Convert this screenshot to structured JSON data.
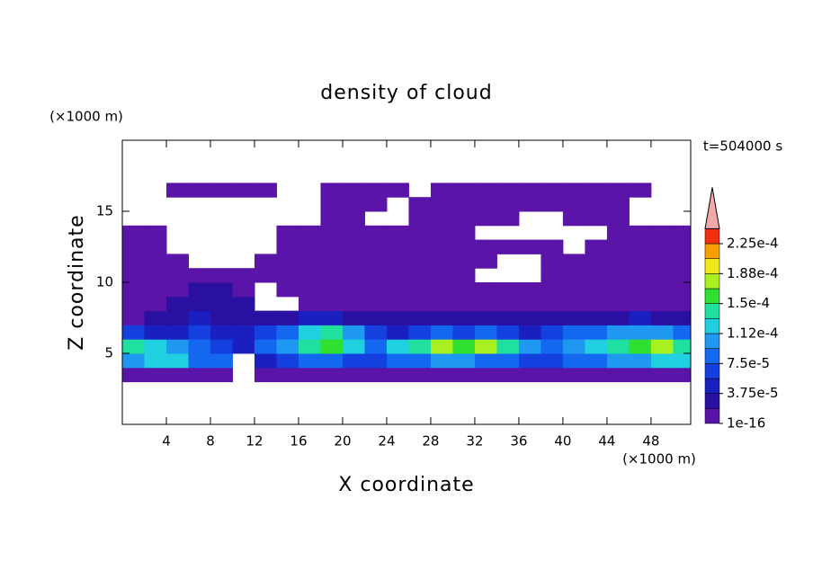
{
  "chart_data": {
    "type": "contour",
    "title": "density of cloud",
    "time_label": "t=504000 s",
    "x_label": "X coordinate",
    "y_label": "Z coordinate",
    "x_unit": "(×1000 m)",
    "y_unit": "(×1000 m)",
    "xlim": [
      0,
      51.6
    ],
    "ylim": [
      0,
      20
    ],
    "xticks": [
      4,
      8,
      12,
      16,
      20,
      24,
      28,
      32,
      36,
      40,
      44,
      48
    ],
    "yticks": [
      5,
      10,
      15
    ],
    "x": [
      1,
      3,
      5,
      7,
      9,
      11,
      13,
      15,
      17,
      19,
      21,
      23,
      25,
      27,
      29,
      31,
      33,
      35,
      37,
      39,
      41,
      43,
      45,
      47,
      49,
      51
    ],
    "z": [
      3.5,
      4.5,
      5.5,
      6.5,
      7.5,
      8.5,
      9.5,
      10.5,
      11.5,
      12.5,
      13.5,
      14.5,
      15.5,
      16.5
    ],
    "values": [
      [
        5e-06,
        5e-06,
        5e-06,
        5e-06,
        5e-06,
        null,
        5e-06,
        5e-06,
        5e-06,
        5e-06,
        5e-06,
        5e-06,
        5e-06,
        5e-06,
        5e-06,
        5e-06,
        5e-06,
        5e-06,
        5e-06,
        5e-06,
        5e-06,
        5e-06,
        5e-06,
        5e-06,
        5e-06,
        5e-06
      ],
      [
        0.00011,
        0.00013,
        0.00012,
        9e-05,
        8e-05,
        null,
        5e-05,
        7e-05,
        8e-05,
        9e-05,
        7e-05,
        6e-05,
        8e-05,
        9e-05,
        0.0001,
        0.0001,
        9e-05,
        8e-05,
        6e-05,
        7e-05,
        8e-05,
        9e-05,
        0.0001,
        0.00011,
        0.00012,
        0.00013
      ],
      [
        0.00015,
        0.00013,
        0.0001,
        8e-05,
        7e-05,
        5e-05,
        8e-05,
        0.00011,
        0.00014,
        0.00016,
        0.00013,
        9e-05,
        0.00012,
        0.00015,
        0.00017,
        0.00016,
        0.00017,
        0.00015,
        0.00011,
        9e-05,
        0.00011,
        0.00013,
        0.00014,
        0.00016,
        0.00017,
        0.00015
      ],
      [
        6e-05,
        4e-05,
        5e-05,
        6e-05,
        5e-05,
        4e-05,
        7e-05,
        9e-05,
        0.00013,
        0.00014,
        0.0001,
        6e-05,
        5e-05,
        7e-05,
        8e-05,
        7e-05,
        8e-05,
        6e-05,
        5e-05,
        6e-05,
        8e-05,
        9e-05,
        0.0001,
        0.00011,
        0.0001,
        8e-05
      ],
      [
        1.5e-05,
        2e-05,
        3e-05,
        4e-05,
        3.5e-05,
        3e-05,
        3e-05,
        3.5e-05,
        4e-05,
        4e-05,
        3e-05,
        2.5e-05,
        2e-05,
        2e-05,
        2.5e-05,
        2e-05,
        2e-05,
        2.5e-05,
        2e-05,
        2e-05,
        2.5e-05,
        3e-05,
        3.5e-05,
        4e-05,
        3.5e-05,
        3e-05
      ],
      [
        1e-05,
        1.5e-05,
        2e-05,
        3e-05,
        3.5e-05,
        3e-05,
        null,
        null,
        1.5e-05,
        1.5e-05,
        1e-05,
        1e-05,
        1e-05,
        1e-05,
        1e-05,
        1e-05,
        1e-05,
        1.5e-05,
        1.5e-05,
        1e-05,
        1e-05,
        1e-05,
        1.5e-05,
        1.5e-05,
        1e-05,
        1e-05
      ],
      [
        1e-05,
        1e-05,
        1e-05,
        2e-05,
        2.5e-05,
        1e-05,
        null,
        1e-05,
        1e-05,
        1e-05,
        1e-05,
        1e-05,
        1e-05,
        1e-05,
        1e-05,
        1e-05,
        1e-05,
        1e-05,
        1e-05,
        1e-05,
        1e-05,
        1e-05,
        1e-05,
        1e-05,
        1e-05,
        1e-05
      ],
      [
        1e-05,
        1e-05,
        1e-05,
        1e-05,
        1e-05,
        1e-05,
        1e-05,
        1e-05,
        1e-05,
        1e-05,
        1e-05,
        1e-05,
        1e-05,
        1e-05,
        1e-05,
        1e-05,
        null,
        null,
        null,
        1e-05,
        1e-05,
        1e-05,
        1e-05,
        1e-05,
        1e-05,
        1e-05
      ],
      [
        1e-05,
        1e-05,
        1e-05,
        null,
        null,
        null,
        1e-05,
        1e-05,
        1e-05,
        1e-05,
        1e-05,
        1e-05,
        1e-05,
        1e-05,
        1e-05,
        1e-05,
        1e-05,
        null,
        null,
        1e-05,
        1e-05,
        1e-05,
        1e-05,
        1e-05,
        1e-05,
        1e-05
      ],
      [
        1e-05,
        1e-05,
        null,
        null,
        null,
        null,
        null,
        1e-05,
        1e-05,
        1e-05,
        1e-05,
        1e-05,
        1e-05,
        1e-05,
        1e-05,
        1e-05,
        1e-05,
        1e-05,
        1e-05,
        1e-05,
        null,
        1e-05,
        1e-05,
        1e-05,
        1e-05,
        1e-05
      ],
      [
        1e-05,
        1e-05,
        null,
        null,
        null,
        null,
        null,
        1e-05,
        1e-05,
        1e-05,
        1e-05,
        1e-05,
        1e-05,
        1e-05,
        1e-05,
        1e-05,
        null,
        null,
        null,
        null,
        null,
        null,
        1e-05,
        1e-05,
        1e-05,
        1e-05
      ],
      [
        null,
        null,
        null,
        null,
        null,
        null,
        null,
        null,
        null,
        1e-05,
        1e-05,
        null,
        null,
        1e-05,
        1e-05,
        1e-05,
        1e-05,
        1e-05,
        null,
        null,
        1e-05,
        1e-05,
        1e-05,
        null,
        null,
        null
      ],
      [
        null,
        null,
        null,
        null,
        null,
        null,
        null,
        null,
        null,
        1e-05,
        1e-05,
        1e-05,
        null,
        1e-05,
        1e-05,
        1e-05,
        1e-05,
        1e-05,
        1e-05,
        1e-05,
        1e-05,
        1e-05,
        1e-05,
        null,
        null,
        null
      ],
      [
        null,
        null,
        1e-05,
        1e-05,
        1e-05,
        1e-05,
        1e-05,
        null,
        null,
        1e-05,
        1e-05,
        1e-05,
        1e-05,
        null,
        1e-05,
        1e-05,
        1e-05,
        1e-05,
        1e-05,
        1e-05,
        1e-05,
        1e-05,
        1e-05,
        1e-05,
        null,
        null
      ]
    ],
    "colorbar": {
      "colors": [
        "#5a14a8",
        "#2a10a0",
        "#1a20c0",
        "#1440e0",
        "#1468f0",
        "#1e98f0",
        "#20d0e0",
        "#20e0a0",
        "#30e030",
        "#a8f020",
        "#f0e818",
        "#f8a000",
        "#f03010"
      ],
      "over_color": "#f0a8a8",
      "clim": [
        1e-16,
        0.000225
      ],
      "ticks": [
        {
          "value": 1e-16,
          "label": "1e-16"
        },
        {
          "value": 3.75e-05,
          "label": "3.75e-5"
        },
        {
          "value": 7.5e-05,
          "label": "7.5e-5"
        },
        {
          "value": 0.0001125,
          "label": "1.12e-4"
        },
        {
          "value": 0.00015,
          "label": "1.5e-4"
        },
        {
          "value": 0.0001875,
          "label": "1.88e-4"
        },
        {
          "value": 0.000225,
          "label": "2.25e-4"
        }
      ]
    }
  }
}
